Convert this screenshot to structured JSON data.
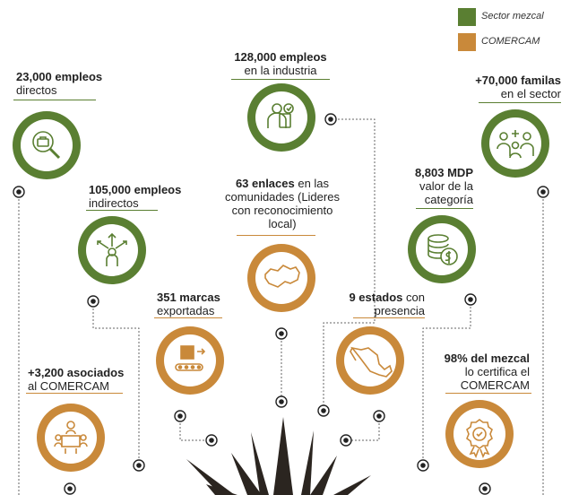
{
  "legend": {
    "green_label": "Sector mezcal",
    "orange_label": "COMERCAM",
    "green": "#5a7f32",
    "orange": "#c9893a"
  },
  "stats": {
    "s1": {
      "bold": "23,000 empleos",
      "rest": "directos",
      "color": "green",
      "icon": "magnifier-briefcase-icon"
    },
    "s2": {
      "bold": "128,000 empleos",
      "rest": "en la industria",
      "color": "green",
      "icon": "worker-clipboard-icon"
    },
    "s3": {
      "bold": "+70,000 familas",
      "rest": "en el sector",
      "color": "green",
      "icon": "family-people-icon"
    },
    "s4": {
      "bold": "105,000 empleos",
      "rest": "indirectos",
      "color": "green",
      "icon": "person-arrows-icon"
    },
    "s5": {
      "bold": "63 enlaces",
      "rest1": " en las",
      "rest2": "comunidades (Lideres",
      "rest3": "con reconocimiento",
      "rest4": "local)",
      "color": "orange",
      "icon": "oaxaca-map-icon"
    },
    "s6": {
      "bold": "8,803 MDP",
      "rest1": "valor de la",
      "rest2": "categoría",
      "color": "green",
      "icon": "coins-stack-icon"
    },
    "s7": {
      "bold": "351 marcas",
      "rest": "exportadas",
      "color": "orange",
      "icon": "conveyor-box-icon"
    },
    "s8": {
      "bold": "9 estados",
      "rest1": " con",
      "rest2": "presencia",
      "color": "orange",
      "icon": "mexico-map-icon"
    },
    "s9": {
      "bold": "+3,200 asociados",
      "rest": "al COMERCAM",
      "color": "orange",
      "icon": "meeting-people-icon"
    },
    "s10": {
      "bold": "98% del mezcal",
      "rest1": "lo certifica el",
      "rest2": "COMERCAM",
      "color": "orange",
      "icon": "certificate-badge-icon"
    }
  }
}
